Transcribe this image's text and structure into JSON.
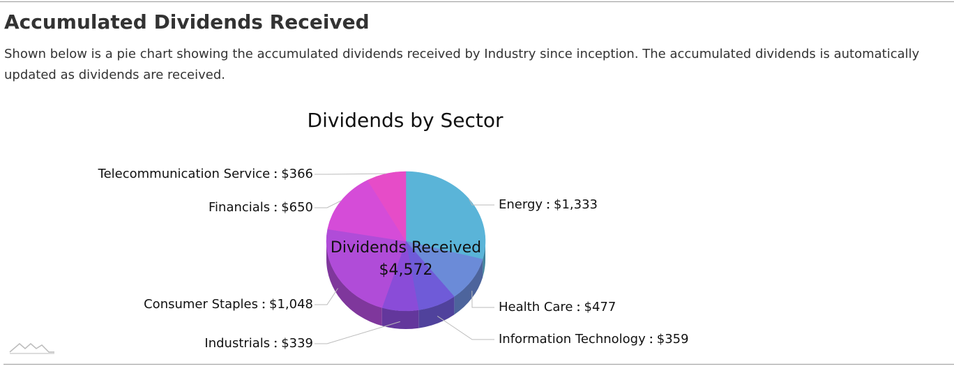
{
  "page": {
    "heading": "Accumulated Dividends Received",
    "description": "Shown below is a pie chart showing the accumulated dividends received by Industry since inception. The accumulated dividends is automatically updated as dividends are received."
  },
  "chart_data": {
    "type": "pie",
    "title": "Dividends by Sector",
    "categories": [
      "Energy",
      "Health Care",
      "Information Technology",
      "Industrials",
      "Consumer Staples",
      "Financials",
      "Telecommunication Service"
    ],
    "values": [
      1333,
      477,
      359,
      339,
      1048,
      650,
      366
    ],
    "value_labels": [
      "$1,333",
      "$477",
      "$359",
      "$339",
      "$1,048",
      "$650",
      "$366"
    ],
    "colors": [
      "#5ab4d8",
      "#6b8bd8",
      "#6f5bd8",
      "#8a4cd8",
      "#b04cd8",
      "#d54cd8",
      "#e64cc8"
    ],
    "center_label": "Dividends Received",
    "total": 4572,
    "total_label": "$4,572"
  }
}
